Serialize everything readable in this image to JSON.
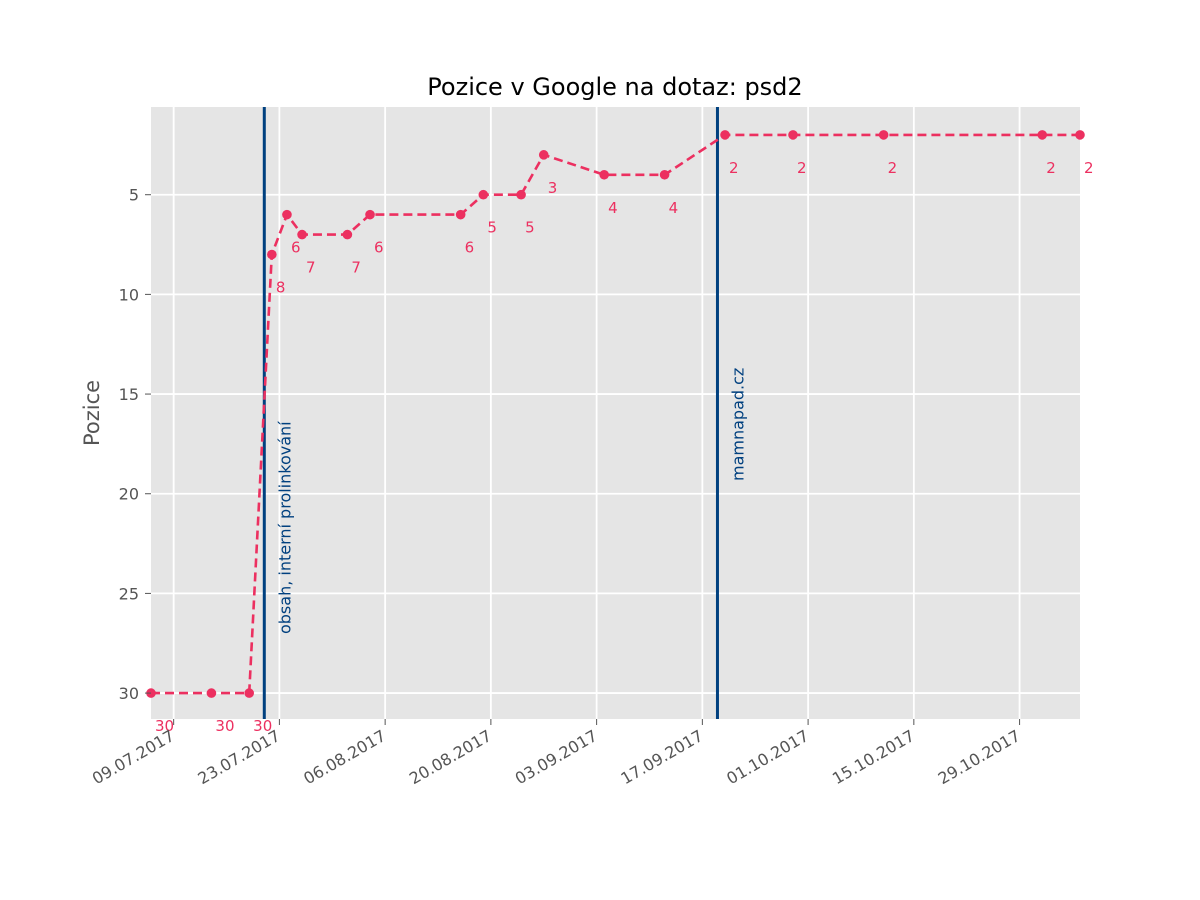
{
  "chart_data": {
    "type": "line",
    "title": "Pozice v Google na dotaz: psd2",
    "xlabel": "",
    "ylabel": "Pozice",
    "y_inverted": true,
    "ylim": [
      31.3,
      0.6
    ],
    "yticks": [
      5,
      10,
      15,
      20,
      25,
      30
    ],
    "xlim": [
      "2017-07-06",
      "2017-11-06"
    ],
    "xticks": [
      {
        "date": "2017-07-09",
        "label": "09.07.2017"
      },
      {
        "date": "2017-07-23",
        "label": "23.07.2017"
      },
      {
        "date": "2017-08-06",
        "label": "06.08.2017"
      },
      {
        "date": "2017-08-20",
        "label": "20.08.2017"
      },
      {
        "date": "2017-09-03",
        "label": "03.09.2017"
      },
      {
        "date": "2017-09-17",
        "label": "17.09.2017"
      },
      {
        "date": "2017-10-01",
        "label": "01.10.2017"
      },
      {
        "date": "2017-10-15",
        "label": "15.10.2017"
      },
      {
        "date": "2017-10-29",
        "label": "29.10.2017"
      }
    ],
    "grid": true,
    "line_color": "#ec3060",
    "line_style": "dashed",
    "background": "#e5e5e5",
    "annotation_color": "#00407f",
    "series": [
      {
        "points": [
          {
            "x": "2017-07-06",
            "y": 30,
            "label": "30"
          },
          {
            "x": "2017-07-14",
            "y": 30,
            "label": "30"
          },
          {
            "x": "2017-07-19",
            "y": 30,
            "label": "30"
          },
          {
            "x": "2017-07-22",
            "y": 8,
            "label": "8"
          },
          {
            "x": "2017-07-24",
            "y": 6,
            "label": "6"
          },
          {
            "x": "2017-07-26",
            "y": 7,
            "label": "7"
          },
          {
            "x": "2017-08-01",
            "y": 7,
            "label": "7"
          },
          {
            "x": "2017-08-04",
            "y": 6,
            "label": "6"
          },
          {
            "x": "2017-08-16",
            "y": 6,
            "label": "6"
          },
          {
            "x": "2017-08-19",
            "y": 5,
            "label": "5"
          },
          {
            "x": "2017-08-24",
            "y": 5,
            "label": "5"
          },
          {
            "x": "2017-08-27",
            "y": 3,
            "label": "3"
          },
          {
            "x": "2017-09-04",
            "y": 4,
            "label": "4"
          },
          {
            "x": "2017-09-12",
            "y": 4,
            "label": "4"
          },
          {
            "x": "2017-09-20",
            "y": 2,
            "label": "2"
          },
          {
            "x": "2017-09-29",
            "y": 2,
            "label": "2"
          },
          {
            "x": "2017-10-11",
            "y": 2,
            "label": "2"
          },
          {
            "x": "2017-11-01",
            "y": 2,
            "label": "2"
          },
          {
            "x": "2017-11-06",
            "y": 2,
            "label": "2"
          }
        ]
      }
    ],
    "annotations": [
      {
        "x": "2017-07-21",
        "label": "obsah, interní prolinkování"
      },
      {
        "x": "2017-09-19",
        "label": "mamnapad.cz"
      }
    ]
  }
}
